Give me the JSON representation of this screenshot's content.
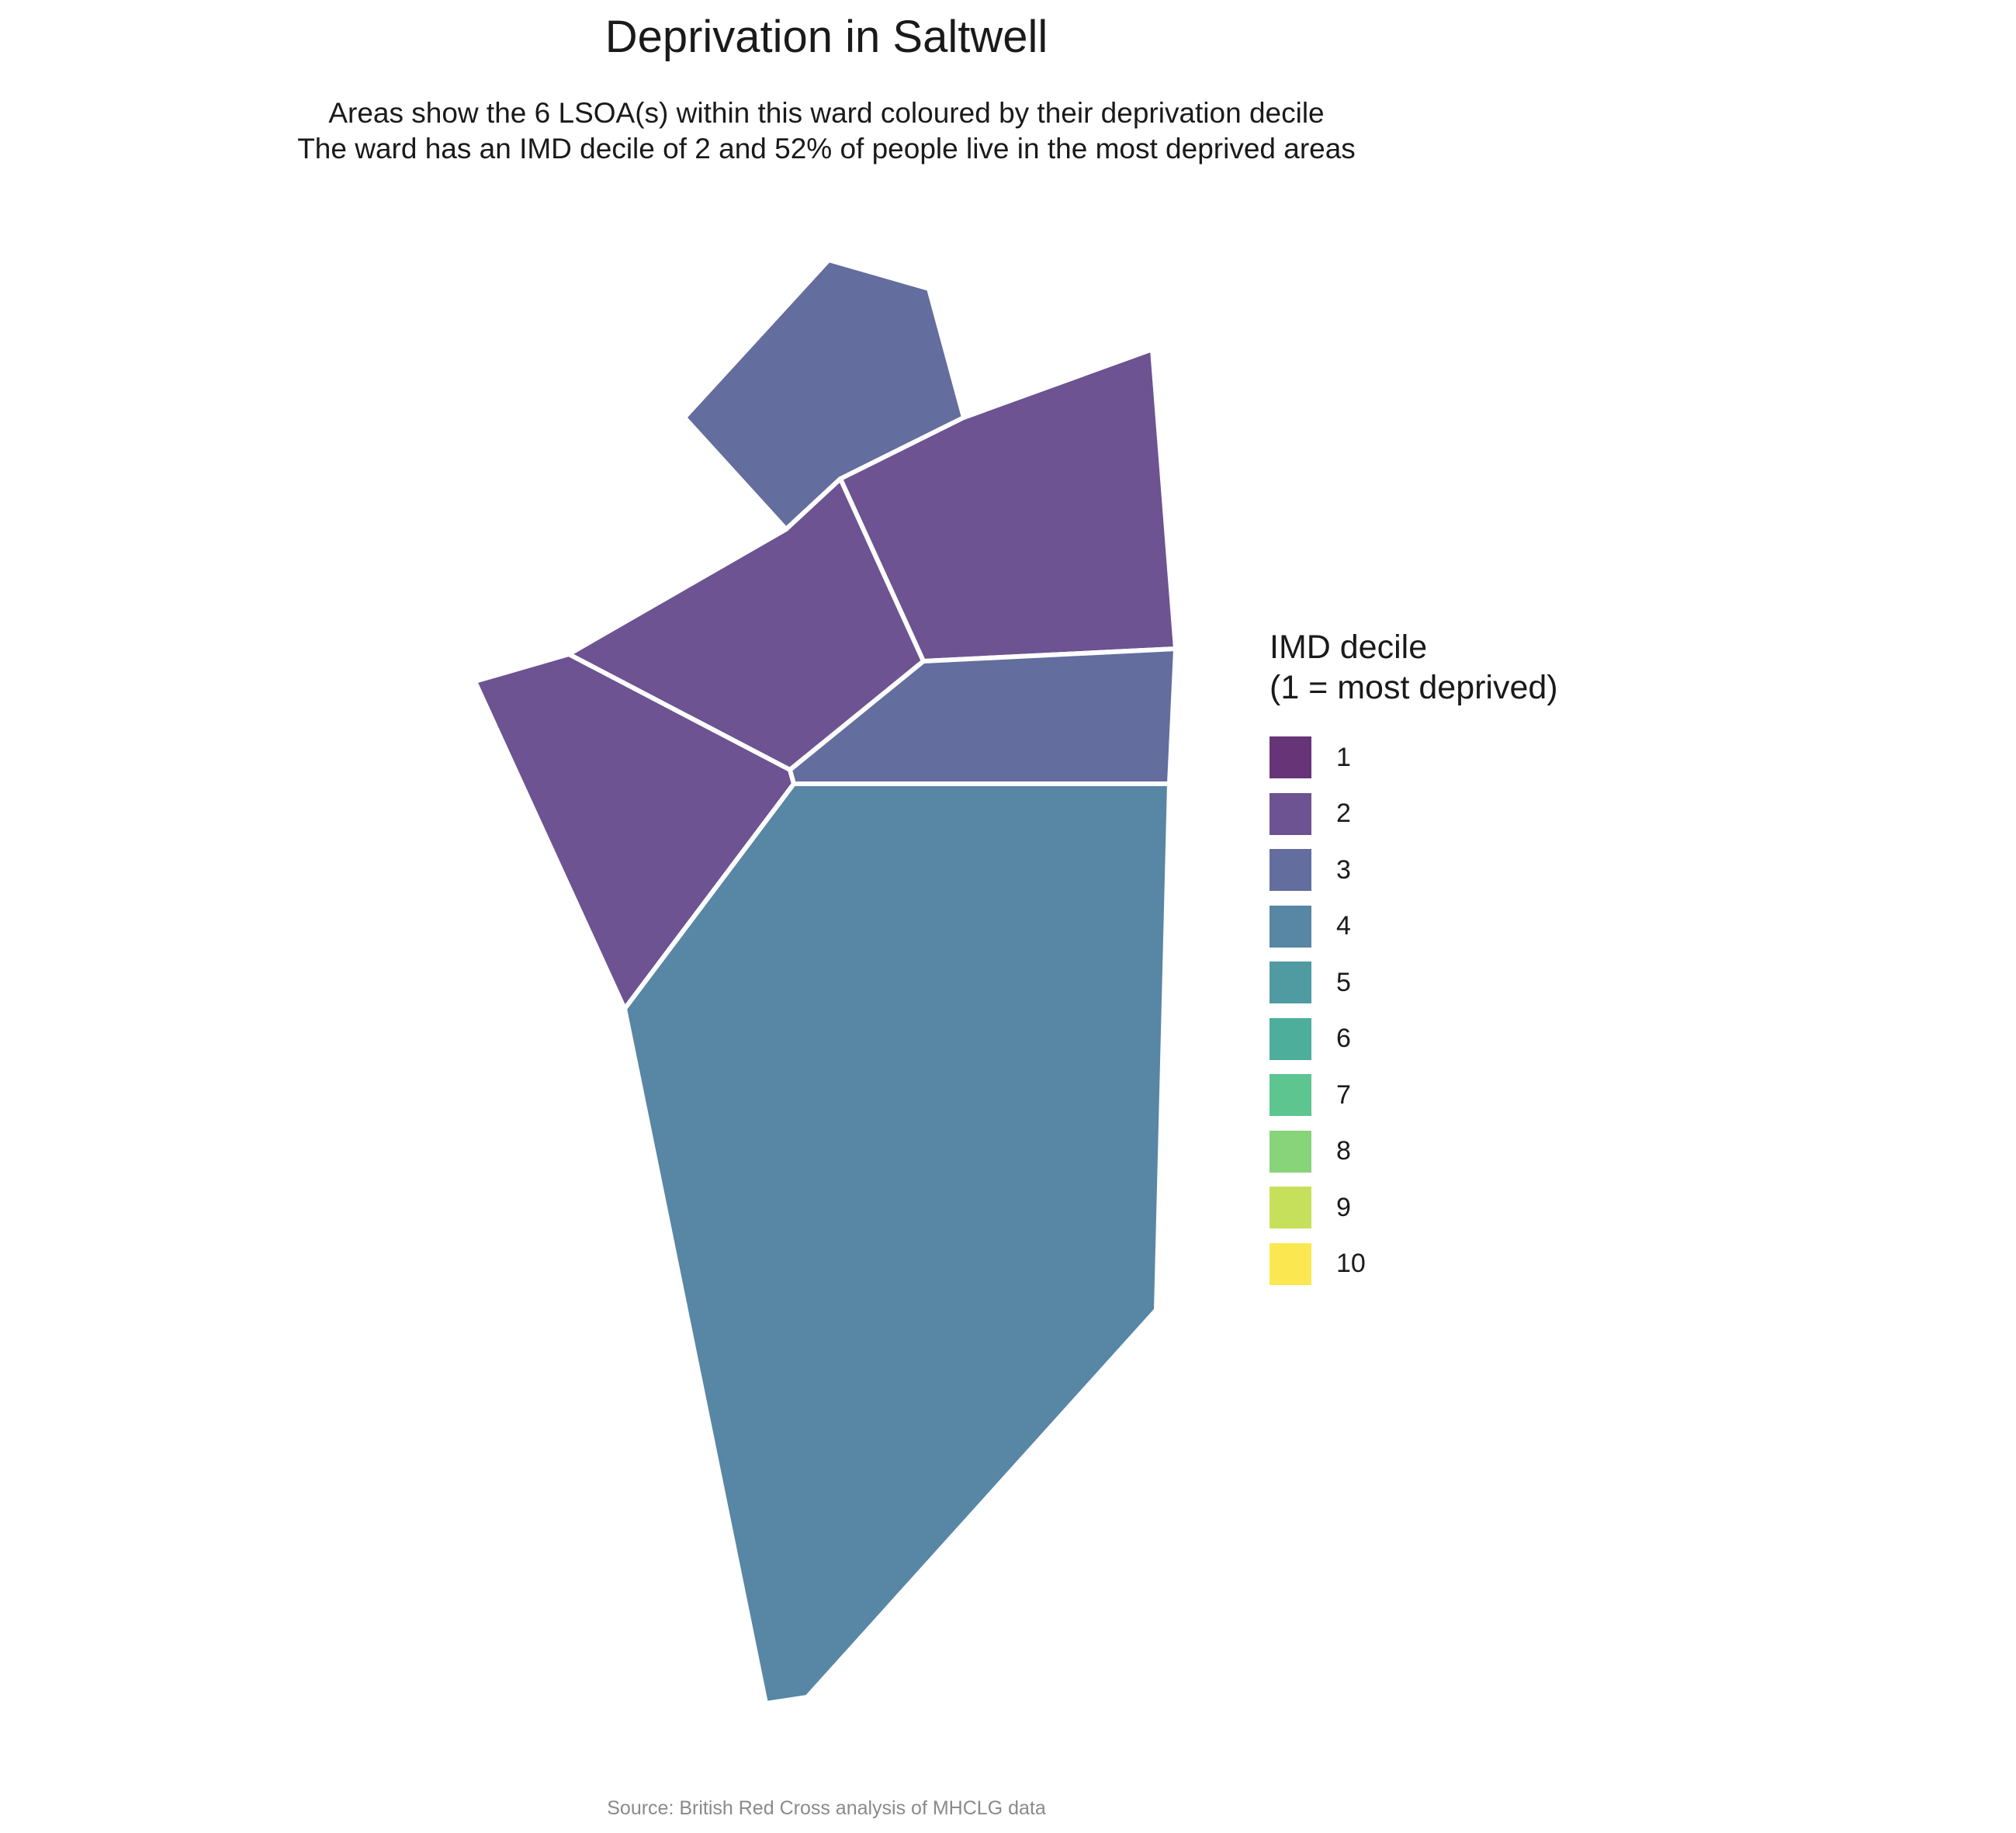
{
  "title": "Deprivation in Saltwell",
  "subtitle": {
    "line1": "Areas show the 6 LSOA(s) within this ward coloured by their deprivation decile",
    "line2": "The ward has an IMD decile of 2 and 52% of people live in the most deprived areas"
  },
  "legend": {
    "title_line1": "IMD decile",
    "title_line2": "(1 = most deprived)",
    "items": [
      {
        "label": "1",
        "color": "#673577"
      },
      {
        "label": "2",
        "color": "#6d5392"
      },
      {
        "label": "3",
        "color": "#636d9e"
      },
      {
        "label": "4",
        "color": "#5886a5"
      },
      {
        "label": "5",
        "color": "#509aa2"
      },
      {
        "label": "6",
        "color": "#4daf9b"
      },
      {
        "label": "7",
        "color": "#5dc590"
      },
      {
        "label": "8",
        "color": "#88d47a"
      },
      {
        "label": "9",
        "color": "#c7e05b"
      },
      {
        "label": "10",
        "color": "#fbe851"
      }
    ]
  },
  "areas": [
    {
      "name": "north-lsoa",
      "decile": 3
    },
    {
      "name": "northeast-lsoa",
      "decile": 2
    },
    {
      "name": "central-lsoa",
      "decile": 2
    },
    {
      "name": "west-lsoa",
      "decile": 2
    },
    {
      "name": "east-lsoa",
      "decile": 3
    },
    {
      "name": "south-lsoa",
      "decile": 4
    }
  ],
  "caption": "Source: British Red Cross analysis of MHCLG data"
}
